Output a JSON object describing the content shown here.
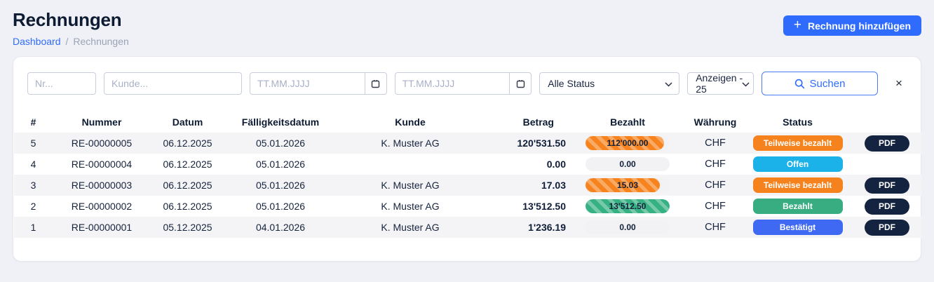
{
  "header": {
    "title": "Rechnungen",
    "breadcrumb": {
      "link": "Dashboard",
      "separator": "/",
      "current": "Rechnungen"
    },
    "add_button_label": "Rechnung hinzufügen"
  },
  "filters": {
    "nr_placeholder": "Nr...",
    "kunde_placeholder": "Kunde...",
    "date_from_placeholder": "TT.MM.JJJJ",
    "date_to_placeholder": "TT.MM.JJJJ",
    "status_value": "Alle Status",
    "per_page_value": "Anzeigen - 25",
    "search_label": "Suchen",
    "clear_label": "×"
  },
  "table": {
    "headers": [
      "#",
      "Nummer",
      "Datum",
      "Fälligkeitsdatum",
      "Kunde",
      "Betrag",
      "Bezahlt",
      "Währung",
      "Status",
      ""
    ],
    "pdf_label": "PDF",
    "rows": [
      {
        "nr": "5",
        "nummer": "RE-00000005",
        "datum": "06.12.2025",
        "faelligkeitsdatum": "05.01.2026",
        "kunde": "K. Muster AG",
        "betrag": "120'531.50",
        "bezahlt": "112'000.00",
        "bezahlt_percent": 93,
        "waehrung": "CHF",
        "status": "Teilweise bezahlt",
        "status_color": "#f6821d",
        "bar_color": "#f6831d",
        "has_pdf": true
      },
      {
        "nr": "4",
        "nummer": "RE-00000004",
        "datum": "06.12.2025",
        "faelligkeitsdatum": "05.01.2026",
        "kunde": "",
        "betrag": "0.00",
        "bezahlt": "0.00",
        "bezahlt_percent": 0,
        "waehrung": "CHF",
        "status": "Offen",
        "status_color": "#1bb1e9",
        "bar_color": "",
        "has_pdf": false
      },
      {
        "nr": "3",
        "nummer": "RE-00000003",
        "datum": "06.12.2025",
        "faelligkeitsdatum": "05.01.2026",
        "kunde": "K. Muster AG",
        "betrag": "17.03",
        "bezahlt": "15.03",
        "bezahlt_percent": 88,
        "waehrung": "CHF",
        "status": "Teilweise bezahlt",
        "status_color": "#f6821d",
        "bar_color": "#f6831d",
        "has_pdf": true
      },
      {
        "nr": "2",
        "nummer": "RE-00000002",
        "datum": "06.12.2025",
        "faelligkeitsdatum": "05.01.2026",
        "kunde": "K. Muster AG",
        "betrag": "13'512.50",
        "bezahlt": "13'512.50",
        "bezahlt_percent": 100,
        "waehrung": "CHF",
        "status": "Bezahlt",
        "status_color": "#38ad82",
        "bar_color": "#35b183",
        "has_pdf": true
      },
      {
        "nr": "1",
        "nummer": "RE-00000001",
        "datum": "05.12.2025",
        "faelligkeitsdatum": "04.01.2026",
        "kunde": "K. Muster AG",
        "betrag": "1'236.19",
        "bezahlt": "0.00",
        "bezahlt_percent": 0,
        "waehrung": "CHF",
        "status": "Bestätigt",
        "status_color": "#3f69f3",
        "bar_color": "",
        "has_pdf": true
      }
    ]
  },
  "colors": {
    "accent_blue": "#2f6bfd",
    "dark_navy": "#0d1b33",
    "badge_offen": "#1bb1e9",
    "badge_teilweise_bezahlt": "#f6821d",
    "badge_bezahlt": "#38ad82",
    "badge_bestaetigt": "#3f69f3",
    "pdf_button": "#142440",
    "page_background": "#f0f1f6"
  }
}
